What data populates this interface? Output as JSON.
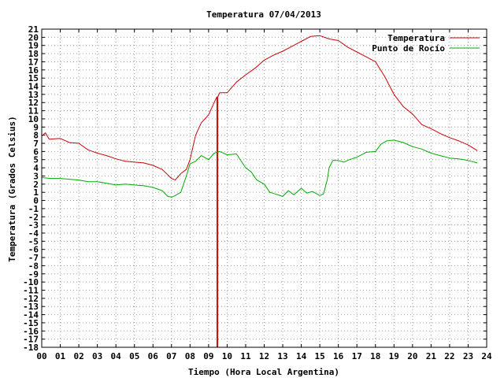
{
  "chart_data": {
    "type": "line",
    "title": "Temperatura 07/04/2013",
    "xlabel": "Tiempo (Hora Local Argentina)",
    "ylabel": "Temperatura (Grados Celsius)",
    "xlim": [
      0,
      24
    ],
    "ylim": [
      -18,
      21
    ],
    "x_ticks": [
      "00",
      "01",
      "02",
      "03",
      "04",
      "05",
      "06",
      "07",
      "08",
      "09",
      "10",
      "11",
      "12",
      "13",
      "14",
      "15",
      "16",
      "17",
      "18",
      "19",
      "20",
      "21",
      "22",
      "23",
      "24"
    ],
    "grid": true,
    "legend_position": "top-right",
    "series": [
      {
        "name": "Temperatura",
        "color": "#cc0000",
        "x": [
          0,
          0.2,
          0.4,
          1.0,
          1.2,
          1.5,
          2.0,
          2.5,
          3.0,
          3.5,
          4.0,
          4.5,
          5.0,
          5.5,
          6.0,
          6.5,
          7.0,
          7.2,
          7.5,
          7.8,
          8.0,
          8.3,
          8.6,
          9.0,
          9.3,
          9.45,
          9.45,
          9.5,
          9.5,
          9.6,
          10.0,
          10.5,
          11.0,
          11.5,
          12.0,
          12.5,
          13.0,
          13.5,
          14.0,
          14.5,
          15.0,
          15.5,
          16.0,
          16.5,
          17.0,
          17.5,
          18.0,
          18.5,
          19.0,
          19.5,
          20.0,
          20.5,
          21.0,
          21.5,
          22.0,
          22.5,
          23.0,
          23.5
        ],
        "y": [
          7.9,
          8.3,
          7.5,
          7.6,
          7.4,
          7.1,
          7.0,
          6.2,
          5.8,
          5.5,
          5.1,
          4.8,
          4.7,
          4.6,
          4.3,
          3.8,
          2.7,
          2.5,
          3.3,
          3.8,
          5.0,
          8.0,
          9.5,
          10.5,
          12.0,
          12.7,
          -18,
          -18,
          12.7,
          13.2,
          13.2,
          14.5,
          15.4,
          16.2,
          17.2,
          17.8,
          18.3,
          18.9,
          19.5,
          20.1,
          20.2,
          19.8,
          19.6,
          18.8,
          18.2,
          17.6,
          17.0,
          15.2,
          13.0,
          11.5,
          10.6,
          9.3,
          8.8,
          8.2,
          7.7,
          7.3,
          6.8,
          6.1
        ]
      },
      {
        "name": "Punto de Rocío",
        "color": "#00aa00",
        "x": [
          0,
          0.5,
          1.0,
          1.5,
          2.0,
          2.5,
          3.0,
          3.5,
          4.0,
          4.5,
          5.0,
          5.5,
          6.0,
          6.5,
          6.8,
          7.0,
          7.2,
          7.5,
          7.8,
          8.0,
          8.3,
          8.6,
          9.0,
          9.3,
          9.6,
          10.0,
          10.5,
          11.0,
          11.3,
          11.6,
          12.0,
          12.3,
          12.6,
          13.0,
          13.3,
          13.6,
          14.0,
          14.3,
          14.6,
          15.0,
          15.2,
          15.4,
          15.5,
          15.7,
          16.0,
          16.3,
          16.6,
          17.0,
          17.5,
          18.0,
          18.3,
          18.6,
          19.0,
          19.5,
          20.0,
          20.5,
          21.0,
          21.5,
          22.0,
          22.5,
          23.0,
          23.5
        ],
        "y": [
          2.8,
          2.7,
          2.7,
          2.6,
          2.5,
          2.3,
          2.3,
          2.1,
          1.9,
          2.0,
          1.9,
          1.8,
          1.6,
          1.2,
          0.5,
          0.4,
          0.6,
          1.0,
          3.0,
          4.5,
          4.8,
          5.5,
          5.0,
          5.8,
          6.0,
          5.6,
          5.7,
          4.0,
          3.5,
          2.5,
          2.0,
          1.0,
          0.8,
          0.5,
          1.2,
          0.7,
          1.5,
          0.9,
          1.1,
          0.6,
          0.8,
          2.5,
          4.0,
          4.9,
          4.9,
          4.7,
          5.0,
          5.3,
          5.9,
          6.0,
          6.9,
          7.3,
          7.4,
          7.1,
          6.6,
          6.3,
          5.8,
          5.5,
          5.2,
          5.1,
          4.9,
          4.6
        ]
      }
    ]
  }
}
